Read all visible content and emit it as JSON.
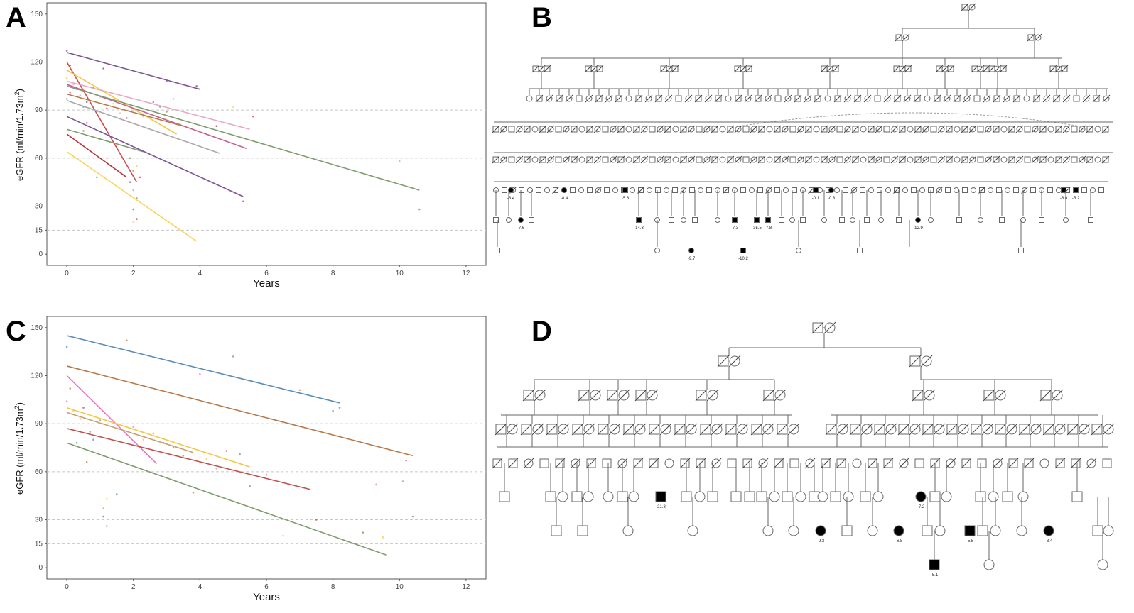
{
  "panel_labels": [
    "A",
    "B",
    "C",
    "D"
  ],
  "chart_data": [
    {
      "type": "scatter",
      "panel": "A",
      "xlabel": "Years",
      "ylabel": "eGFR (ml/min/1.73m²)",
      "ylabel_main": "eGFR (ml/min/1.73m",
      "ylabel_sup": "2",
      "ylabel_end": ")",
      "xlim": [
        -0.6,
        12.6
      ],
      "ylim": [
        -7,
        157
      ],
      "x_ticks": [
        "0",
        "2",
        "4",
        "6",
        "8",
        "10",
        "12"
      ],
      "y_ticks": [
        "150",
        "120",
        "90",
        "60",
        "30",
        "15",
        "0"
      ],
      "grid_y": [
        90,
        60,
        30,
        15
      ],
      "series": [
        {
          "color": "#7e5593",
          "x": [
            0,
            4.0
          ],
          "y": [
            126,
            103
          ]
        },
        {
          "color": "#d24a4a",
          "x": [
            0,
            2.1
          ],
          "y": [
            120,
            45
          ]
        },
        {
          "color": "#f2c84b",
          "x": [
            0,
            3.3
          ],
          "y": [
            115,
            75
          ]
        },
        {
          "color": "#e8a8c4",
          "x": [
            0,
            5.5
          ],
          "y": [
            108,
            78
          ]
        },
        {
          "color": "#c2628d",
          "x": [
            0,
            5.4
          ],
          "y": [
            106,
            66
          ]
        },
        {
          "color": "#7e9d6e",
          "x": [
            0,
            10.6
          ],
          "y": [
            105,
            40
          ]
        },
        {
          "color": "#b8794a",
          "x": [
            0,
            3.5
          ],
          "y": [
            100,
            80
          ]
        },
        {
          "color": "#a9a9a9",
          "x": [
            0,
            4.6
          ],
          "y": [
            96,
            63
          ]
        },
        {
          "color": "#7e9d6e",
          "x": [
            0,
            2.3
          ],
          "y": [
            78,
            64
          ]
        },
        {
          "color": "#7e5593",
          "x": [
            0,
            5.3
          ],
          "y": [
            86,
            36
          ]
        },
        {
          "color": "#b03a3a",
          "x": [
            0,
            1.8
          ],
          "y": [
            75,
            48
          ]
        },
        {
          "color": "#f7d65a",
          "x": [
            0,
            3.9
          ],
          "y": [
            64,
            8
          ]
        }
      ],
      "scatter_points": [
        {
          "x": 0.0,
          "y": 127
        },
        {
          "x": 0.1,
          "y": 118
        },
        {
          "x": 0.0,
          "y": 110
        },
        {
          "x": 0.2,
          "y": 106
        },
        {
          "x": 0.1,
          "y": 101
        },
        {
          "x": 0.0,
          "y": 97
        },
        {
          "x": 0.3,
          "y": 103
        },
        {
          "x": 0.4,
          "y": 99
        },
        {
          "x": 0.5,
          "y": 92
        },
        {
          "x": 0.6,
          "y": 95
        },
        {
          "x": 0.8,
          "y": 104
        },
        {
          "x": 1.0,
          "y": 98
        },
        {
          "x": 1.1,
          "y": 116
        },
        {
          "x": 1.2,
          "y": 91
        },
        {
          "x": 1.4,
          "y": 94
        },
        {
          "x": 1.6,
          "y": 88
        },
        {
          "x": 1.8,
          "y": 85
        },
        {
          "x": 1.9,
          "y": 60
        },
        {
          "x": 2.0,
          "y": 52
        },
        {
          "x": 2.0,
          "y": 40
        },
        {
          "x": 2.1,
          "y": 35
        },
        {
          "x": 2.0,
          "y": 28
        },
        {
          "x": 2.1,
          "y": 22
        },
        {
          "x": 2.0,
          "y": 20
        },
        {
          "x": 1.9,
          "y": 45
        },
        {
          "x": 2.2,
          "y": 48
        },
        {
          "x": 2.1,
          "y": 55
        },
        {
          "x": 2.3,
          "y": 86
        },
        {
          "x": 2.6,
          "y": 95
        },
        {
          "x": 2.8,
          "y": 92
        },
        {
          "x": 3.0,
          "y": 89
        },
        {
          "x": 3.2,
          "y": 97
        },
        {
          "x": 3.4,
          "y": 81
        },
        {
          "x": 3.9,
          "y": 105
        },
        {
          "x": 4.5,
          "y": 80
        },
        {
          "x": 5.0,
          "y": 92
        },
        {
          "x": 5.3,
          "y": 33
        },
        {
          "x": 5.6,
          "y": 86
        },
        {
          "x": 1.0,
          "y": 72
        },
        {
          "x": 1.2,
          "y": 60
        },
        {
          "x": 0.6,
          "y": 82
        },
        {
          "x": 0.9,
          "y": 48
        },
        {
          "x": 0.5,
          "y": 77
        },
        {
          "x": 10.0,
          "y": 58
        },
        {
          "x": 10.6,
          "y": 28
        },
        {
          "x": 3.0,
          "y": 108
        }
      ]
    },
    {
      "type": "scatter",
      "panel": "C",
      "xlabel": "Years",
      "ylabel": "eGFR (ml/min/1.73m²)",
      "ylabel_main": "eGFR (ml/min/1.73m",
      "ylabel_sup": "2",
      "ylabel_end": ")",
      "xlim": [
        -0.6,
        12.6
      ],
      "ylim": [
        -7,
        157
      ],
      "x_ticks": [
        "0",
        "2",
        "4",
        "6",
        "8",
        "10",
        "12"
      ],
      "y_ticks": [
        "150",
        "120",
        "90",
        "60",
        "30",
        "15",
        "0"
      ],
      "grid_y": [
        90,
        60,
        30,
        15
      ],
      "series": [
        {
          "color": "#5b8db8",
          "x": [
            0,
            8.2
          ],
          "y": [
            145,
            103
          ]
        },
        {
          "color": "#b8794a",
          "x": [
            0,
            10.4
          ],
          "y": [
            126,
            70
          ]
        },
        {
          "color": "#e377c2",
          "x": [
            0,
            2.7
          ],
          "y": [
            120,
            65
          ]
        },
        {
          "color": "#f2c84b",
          "x": [
            0,
            5.5
          ],
          "y": [
            100,
            63
          ]
        },
        {
          "color": "#c2a070",
          "x": [
            0,
            3.8
          ],
          "y": [
            97,
            72
          ]
        },
        {
          "color": "#c0504d",
          "x": [
            0,
            7.3
          ],
          "y": [
            87,
            49
          ]
        },
        {
          "color": "#7e9d6e",
          "x": [
            0,
            9.6
          ],
          "y": [
            78,
            8
          ]
        }
      ],
      "scatter_points": [
        {
          "x": 0.0,
          "y": 138
        },
        {
          "x": 0.1,
          "y": 112
        },
        {
          "x": 0.0,
          "y": 104
        },
        {
          "x": 0.2,
          "y": 98
        },
        {
          "x": 0.4,
          "y": 93
        },
        {
          "x": 0.5,
          "y": 100
        },
        {
          "x": 0.7,
          "y": 85
        },
        {
          "x": 0.8,
          "y": 80
        },
        {
          "x": 1.0,
          "y": 92
        },
        {
          "x": 1.1,
          "y": 70
        },
        {
          "x": 1.2,
          "y": 43
        },
        {
          "x": 1.1,
          "y": 37
        },
        {
          "x": 1.1,
          "y": 32
        },
        {
          "x": 1.2,
          "y": 26
        },
        {
          "x": 1.5,
          "y": 46
        },
        {
          "x": 1.8,
          "y": 142
        },
        {
          "x": 2.0,
          "y": 88
        },
        {
          "x": 2.3,
          "y": 80
        },
        {
          "x": 2.6,
          "y": 84
        },
        {
          "x": 2.9,
          "y": 78
        },
        {
          "x": 3.2,
          "y": 75
        },
        {
          "x": 3.5,
          "y": 70
        },
        {
          "x": 3.8,
          "y": 47
        },
        {
          "x": 4.0,
          "y": 121
        },
        {
          "x": 4.2,
          "y": 68
        },
        {
          "x": 4.5,
          "y": 62
        },
        {
          "x": 4.8,
          "y": 73
        },
        {
          "x": 5.0,
          "y": 132
        },
        {
          "x": 5.2,
          "y": 71
        },
        {
          "x": 5.5,
          "y": 51
        },
        {
          "x": 6.0,
          "y": 58
        },
        {
          "x": 6.5,
          "y": 20
        },
        {
          "x": 7.0,
          "y": 111
        },
        {
          "x": 7.5,
          "y": 30
        },
        {
          "x": 8.0,
          "y": 98
        },
        {
          "x": 8.2,
          "y": 100
        },
        {
          "x": 8.9,
          "y": 22
        },
        {
          "x": 9.3,
          "y": 52
        },
        {
          "x": 9.5,
          "y": 19
        },
        {
          "x": 10.1,
          "y": 54
        },
        {
          "x": 10.2,
          "y": 67
        },
        {
          "x": 10.4,
          "y": 32
        },
        {
          "x": 0.3,
          "y": 78
        },
        {
          "x": 0.6,
          "y": 66
        }
      ]
    }
  ],
  "pedigree_B": {
    "affected_labels": [
      "-8.4",
      "-8.4",
      "-5.8",
      "-0.1",
      "-0.3",
      "-6.6",
      "-5.2",
      "-7.6",
      "-14.3",
      "-7.3",
      "-35.5",
      "-7.8",
      "-12.9",
      "-9.7",
      "-10.2"
    ]
  },
  "pedigree_D": {
    "affected_labels": [
      "-21.8",
      "-7.2",
      "-9.3",
      "-6.8",
      "-5.5",
      "-8.4",
      "-5.1"
    ]
  },
  "colors": {
    "grid": "#c8c8c8",
    "frame": "#555555",
    "pedigree_line": "#666666",
    "affected": "#000000"
  }
}
